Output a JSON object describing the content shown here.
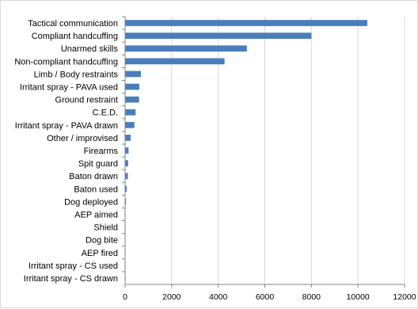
{
  "chart_data": {
    "type": "bar",
    "orientation": "horizontal",
    "categories": [
      "Tactical communication",
      "Compliant handcuffing",
      "Unarmed skills",
      "Non-compliant handcuffing",
      "Limb / Body restraints",
      "Irritant spray - PAVA used",
      "Ground restraint",
      "C.E.D.",
      "Irritant spray - PAVA drawn",
      "Other / improvised",
      "Firearms",
      "Spit guard",
      "Baton drawn",
      "Baton used",
      "Dog deployed",
      "AEP aimed",
      "Shield",
      "Dog bite",
      "AEP fired",
      "Irritant spray - CS used",
      "Irritant spray - CS drawn"
    ],
    "values": [
      10400,
      8000,
      5230,
      4270,
      680,
      610,
      600,
      450,
      400,
      240,
      150,
      130,
      120,
      70,
      40,
      20,
      10,
      8,
      5,
      3,
      2
    ],
    "xlim": [
      0,
      12000
    ],
    "xticks": [
      "0",
      "2000",
      "4000",
      "6000",
      "8000",
      "10000",
      "12000"
    ],
    "bar_color": "#4a7ebb",
    "grid": "vertical",
    "legend": "none"
  }
}
